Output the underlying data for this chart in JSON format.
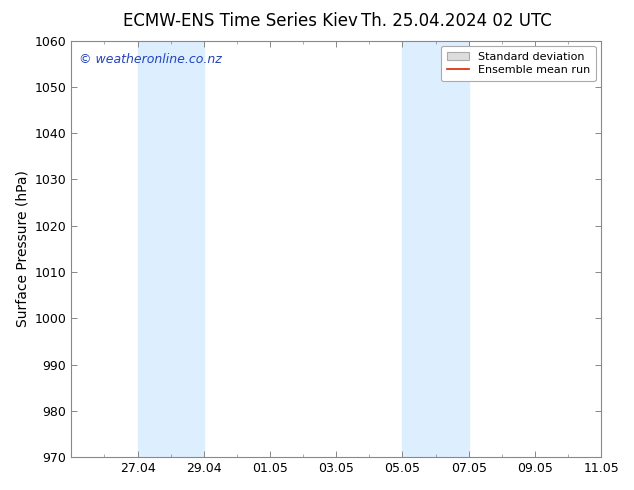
{
  "title_left": "ECMW-ENS Time Series Kiev",
  "title_right": "Th. 25.04.2024 02 UTC",
  "ylabel": "Surface Pressure (hPa)",
  "ylim": [
    970,
    1060
  ],
  "yticks": [
    970,
    980,
    990,
    1000,
    1010,
    1020,
    1030,
    1040,
    1050,
    1060
  ],
  "xtick_labels": [
    "27.04",
    "29.04",
    "01.05",
    "03.05",
    "05.05",
    "07.05",
    "09.05",
    "11.05"
  ],
  "xtick_positions": [
    2,
    4,
    6,
    8,
    10,
    12,
    14,
    16
  ],
  "xlim": [
    0,
    16
  ],
  "shaded_regions": [
    {
      "x_start": 2,
      "x_end": 3
    },
    {
      "x_start": 3,
      "x_end": 4
    },
    {
      "x_start": 10,
      "x_end": 11
    },
    {
      "x_start": 11,
      "x_end": 12
    }
  ],
  "shaded_color": "#ddeeff",
  "watermark": "© weatheronline.co.nz",
  "watermark_color": "#2244bb",
  "background_color": "#ffffff",
  "plot_bg_color": "#ffffff",
  "spine_color": "#888888",
  "legend_std_color": "#dddddd",
  "legend_std_edge": "#aaaaaa",
  "legend_mean_color": "#dd2200",
  "title_fontsize": 12,
  "label_fontsize": 10,
  "tick_fontsize": 9,
  "watermark_fontsize": 9,
  "legend_fontsize": 8
}
